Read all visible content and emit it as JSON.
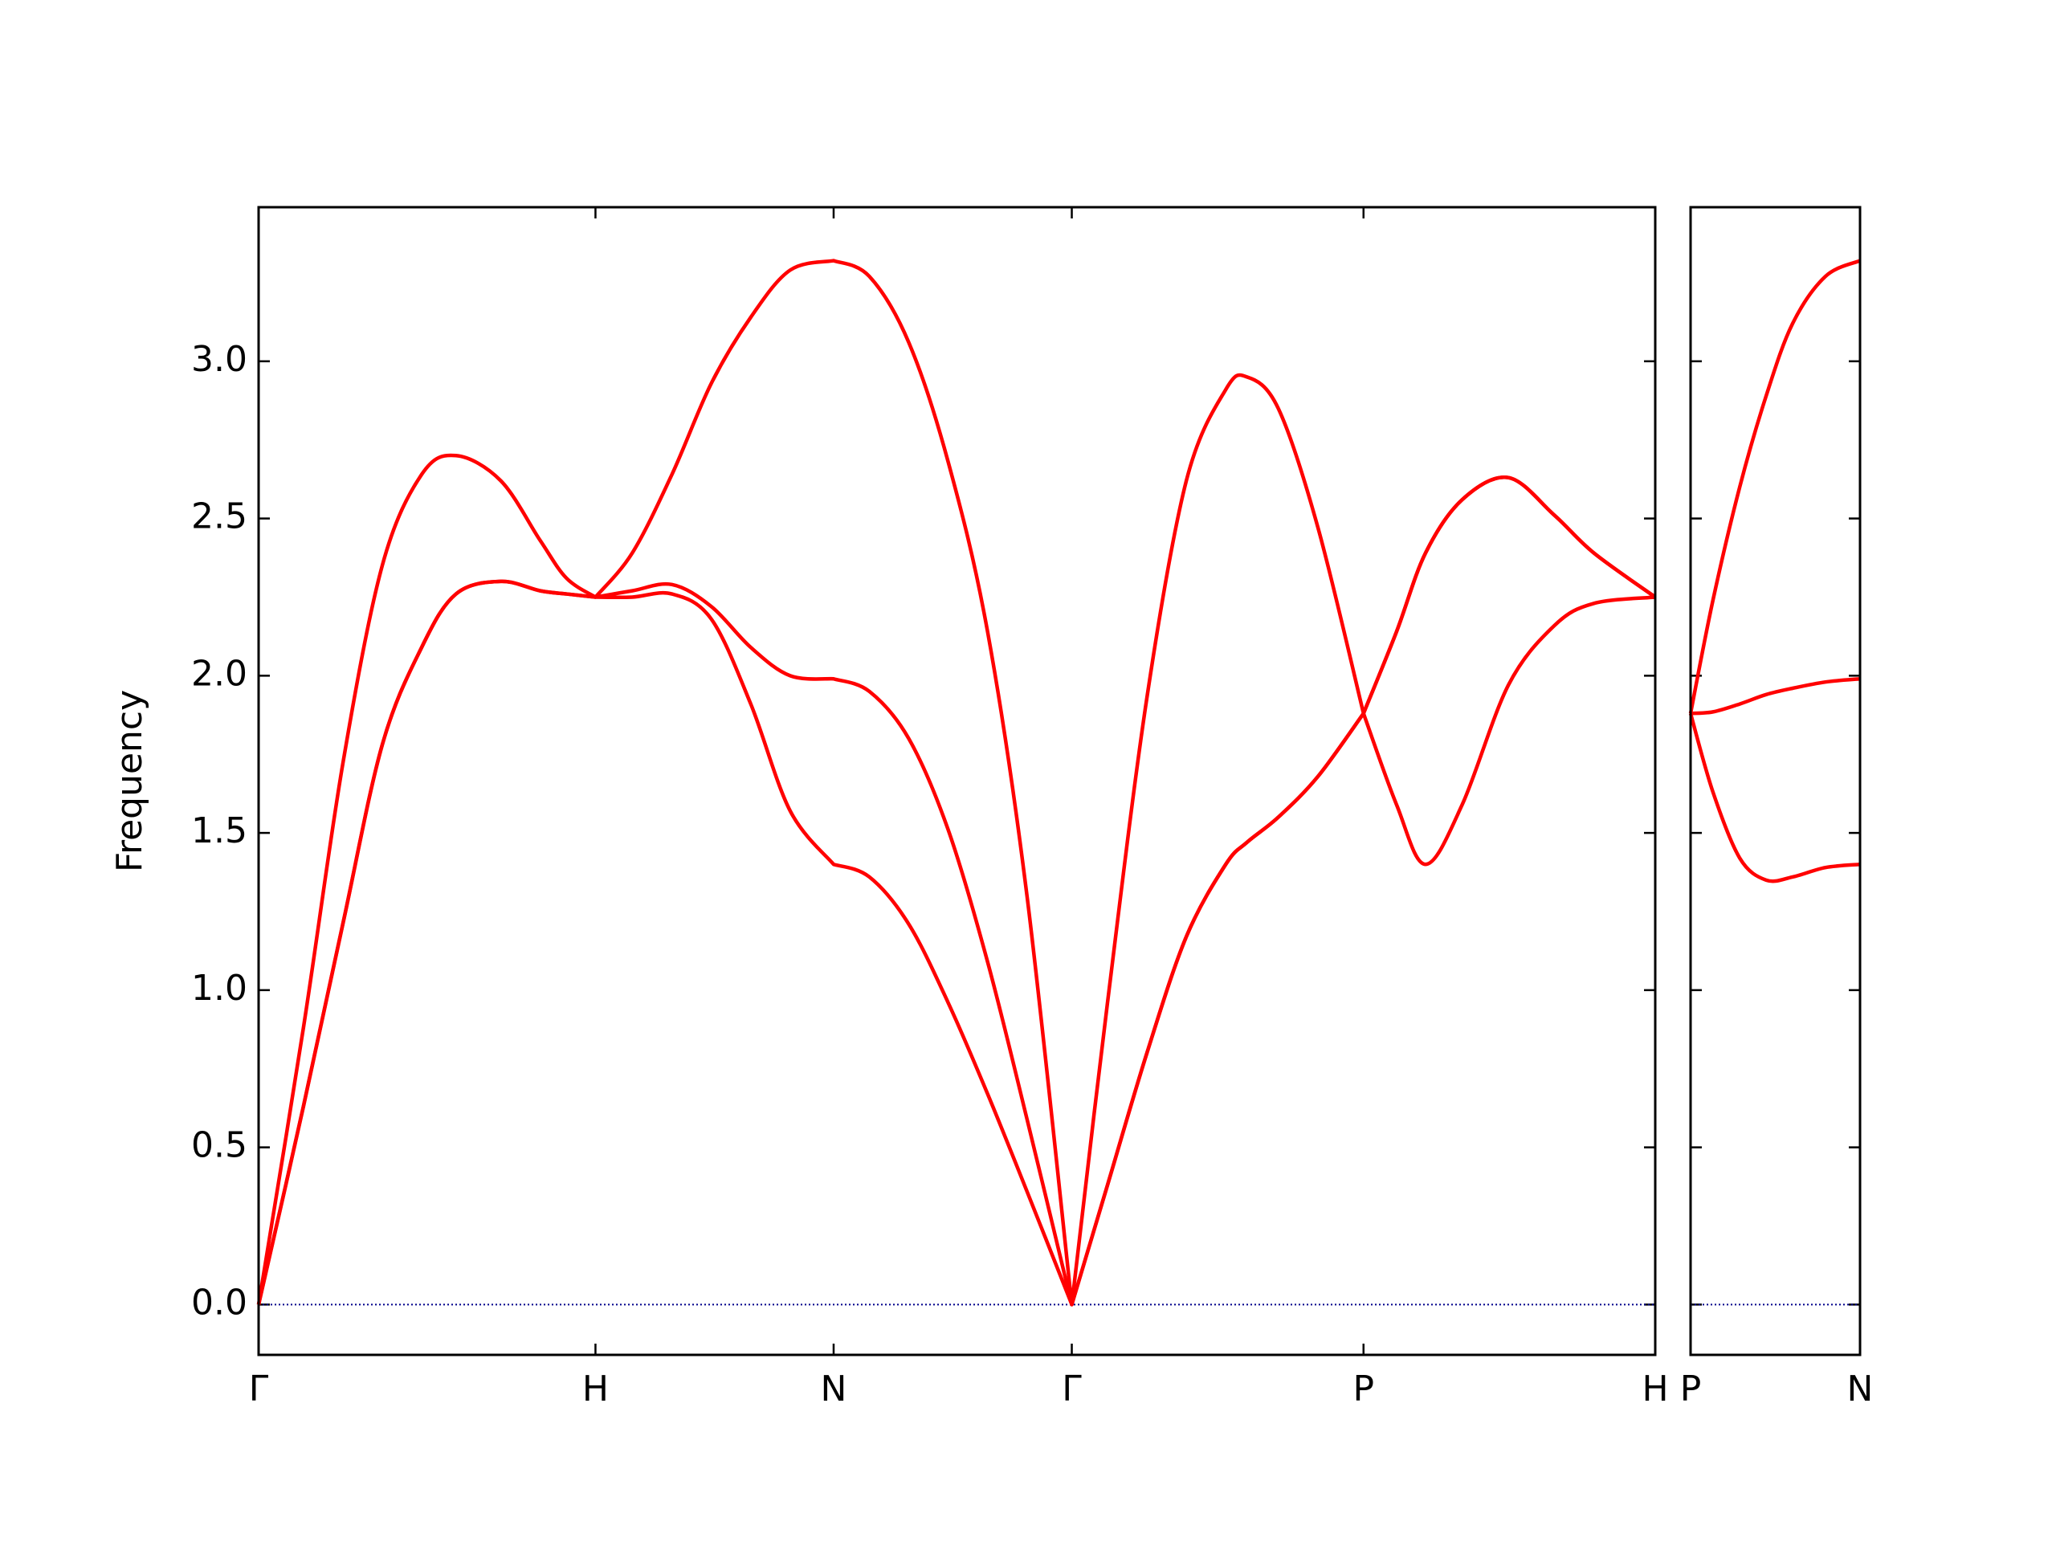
{
  "chart_data": [
    {
      "type": "line",
      "ylabel": "Frequency",
      "x": [
        0,
        0.133,
        0.25,
        0.367,
        0.484,
        0.586,
        0.719,
        0.836,
        0.914,
        1.0,
        1.109,
        1.227,
        1.344,
        1.461,
        1.578,
        1.707,
        1.813,
        1.93,
        2.047,
        2.164,
        2.281,
        2.414,
        2.52,
        2.637,
        2.754,
        2.871,
        2.934,
        3.027,
        3.145,
        3.28,
        3.378,
        3.464,
        3.573,
        3.71,
        3.847,
        3.964,
        4.146
      ],
      "series": [
        {
          "color": "#ff0000",
          "values": [
            0,
            0.63,
            1.21,
            1.78,
            2.09,
            2.26,
            2.3,
            2.27,
            2.26,
            2.25,
            2.25,
            2.26,
            2.18,
            1.91,
            1.57,
            1.4,
            1.36,
            1.21,
            0.96,
            0.67,
            0.36,
            0,
            0.38,
            0.8,
            1.17,
            1.4,
            1.47,
            1.55,
            1.68,
            1.88,
            1.59,
            1.4,
            1.59,
            1.97,
            2.16,
            2.23,
            2.25
          ]
        },
        {
          "color": "#ff0000",
          "values": [
            0,
            0.63,
            1.21,
            1.78,
            2.09,
            2.26,
            2.3,
            2.27,
            2.26,
            2.25,
            2.27,
            2.29,
            2.22,
            2.09,
            2.0,
            1.99,
            1.95,
            1.8,
            1.51,
            1.09,
            0.59,
            0,
            0.38,
            0.8,
            1.17,
            1.4,
            1.47,
            1.55,
            1.68,
            1.88,
            2.14,
            2.39,
            2.56,
            2.63,
            2.51,
            2.39,
            2.25
          ]
        },
        {
          "color": "#ff0000",
          "values": [
            0,
            0.88,
            1.72,
            2.35,
            2.64,
            2.7,
            2.62,
            2.43,
            2.31,
            2.25,
            2.39,
            2.64,
            2.93,
            3.14,
            3.29,
            3.32,
            3.27,
            3.06,
            2.68,
            2.14,
            1.3,
            0,
            0.96,
            1.93,
            2.62,
            2.91,
            2.95,
            2.85,
            2.47,
            1.88,
            2.14,
            2.39,
            2.56,
            2.63,
            2.51,
            2.39,
            2.25
          ]
        }
      ],
      "xlim": [
        0,
        4.146
      ],
      "xticks": [
        {
          "value": 0,
          "label": "Γ"
        },
        {
          "value": 1.0,
          "label": "H"
        },
        {
          "value": 1.707,
          "label": "N"
        },
        {
          "value": 2.414,
          "label": "Γ"
        },
        {
          "value": 3.28,
          "label": "P"
        },
        {
          "value": 4.146,
          "label": "H"
        }
      ],
      "ylim": [
        -0.16,
        3.49
      ],
      "yticks": [
        {
          "value": 0,
          "label": "0.0"
        },
        0.5,
        {
          "value": 1,
          "label": "1.0"
        },
        1.5,
        {
          "value": 2,
          "label": "2.0"
        },
        2.5,
        {
          "value": 3,
          "label": "3.0"
        }
      ],
      "show_ytick_labels": true,
      "zero_line": true,
      "zero_line_color": "#00008b"
    },
    {
      "type": "line",
      "x": [
        0,
        0.066,
        0.145,
        0.223,
        0.301,
        0.398,
        0.5
      ],
      "series": [
        {
          "color": "#ff0000",
          "values": [
            1.88,
            1.63,
            1.42,
            1.35,
            1.36,
            1.39,
            1.4
          ]
        },
        {
          "color": "#ff0000",
          "values": [
            1.88,
            1.885,
            1.91,
            1.94,
            1.96,
            1.98,
            1.99
          ]
        },
        {
          "color": "#ff0000",
          "values": [
            1.88,
            2.24,
            2.6,
            2.89,
            3.12,
            3.27,
            3.32
          ]
        }
      ],
      "xlim": [
        0,
        0.5
      ],
      "xticks": [
        {
          "value": 0,
          "label": "P"
        },
        {
          "value": 0.5,
          "label": "N"
        }
      ],
      "ylim": [
        -0.16,
        3.49
      ],
      "yticks": [
        0,
        0.5,
        1,
        1.5,
        2,
        2.5,
        3
      ],
      "show_ytick_labels": false,
      "zero_line": true,
      "zero_line_color": "#00008b"
    }
  ]
}
